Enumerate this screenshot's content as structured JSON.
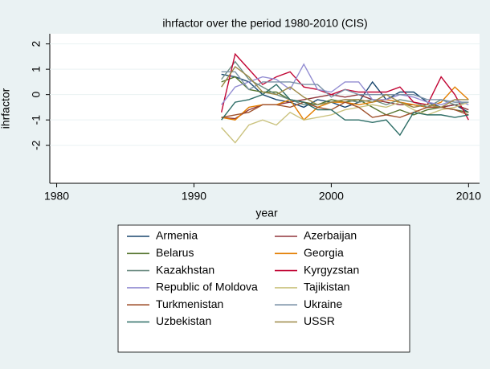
{
  "chart_data": {
    "type": "line",
    "title": "ihrfactor over the period 1980-2010 (CIS)",
    "x_label": "year",
    "y_label": "ihrfactor",
    "x": [
      1992,
      1993,
      1994,
      1995,
      1996,
      1997,
      1998,
      1999,
      2000,
      2001,
      2002,
      2003,
      2004,
      2005,
      2006,
      2007,
      2008,
      2009,
      2010
    ],
    "xlim": [
      1979.5,
      2010.8
    ],
    "xticks": [
      1980,
      1990,
      2000,
      2010
    ],
    "ylim": [
      -3.5,
      2.4
    ],
    "yticks": [
      -2,
      -1,
      0,
      1,
      2
    ],
    "grid": true,
    "series": [
      {
        "name": "Armenia",
        "color": "#1a476f",
        "values": [
          0.8,
          0.7,
          0.5,
          0,
          -0.2,
          -0.3,
          -0.5,
          -0.2,
          -0.3,
          -0.5,
          -0.3,
          0.5,
          -0.2,
          0.1,
          0.1,
          -0.3,
          -0.5,
          -0.4,
          -0.7
        ]
      },
      {
        "name": "Azerbaijan",
        "color": "#90353b",
        "values": [
          -0.9,
          -0.95,
          -0.6,
          -0.4,
          -0.4,
          -0.3,
          -0.2,
          -0.1,
          0,
          -0.1,
          0,
          -0.2,
          -0.3,
          -0.4,
          -0.4,
          -0.5,
          -0.5,
          -0.4,
          -0.6
        ]
      },
      {
        "name": "Belarus",
        "color": "#55752f",
        "values": [
          0.5,
          0.7,
          0.2,
          0.1,
          0.1,
          -0.2,
          -0.3,
          -0.4,
          -0.2,
          -0.3,
          -0.2,
          -0.5,
          -0.8,
          -0.6,
          -0.8,
          -0.6,
          -0.5,
          -0.6,
          -0.7
        ]
      },
      {
        "name": "Georgia",
        "color": "#e37e00",
        "values": [
          -0.9,
          -1.0,
          -0.5,
          -0.4,
          -0.4,
          -0.2,
          -1.0,
          -0.5,
          -0.3,
          -0.3,
          -0.4,
          -0.3,
          -0.2,
          -0.3,
          -0.4,
          -0.5,
          -0.3,
          0.3,
          -0.2
        ]
      },
      {
        "name": "Kazakhstan",
        "color": "#6e8e84",
        "values": [
          0.6,
          1.3,
          0.6,
          0.3,
          0,
          -0.2,
          -0.4,
          -0.4,
          -0.3,
          -0.2,
          -0.3,
          -0.2,
          -0.4,
          -0.2,
          -0.3,
          -0.5,
          -0.2,
          -0.4,
          -0.3
        ]
      },
      {
        "name": "Kyrgyzstan",
        "color": "#c10534",
        "values": [
          -0.7,
          1.6,
          1.0,
          0.4,
          0.7,
          0.9,
          0.3,
          0.2,
          0,
          0.2,
          0.1,
          0.1,
          0.1,
          0.3,
          -0.3,
          -0.4,
          0.7,
          0,
          -1.0
        ]
      },
      {
        "name": "Republic of Moldova",
        "color": "#938dd2",
        "values": [
          -0.4,
          0.3,
          0.5,
          0.7,
          0.6,
          0.2,
          1.2,
          0.2,
          0.1,
          0.5,
          0.5,
          -0.2,
          -0.2,
          0,
          -0.1,
          -0.3,
          -0.4,
          -0.2,
          -0.4
        ]
      },
      {
        "name": "Tajikistan",
        "color": "#cac27e",
        "values": [
          -1.3,
          -1.9,
          -1.2,
          -1.0,
          -1.2,
          -0.7,
          -1.0,
          -0.9,
          -0.8,
          -0.6,
          -0.5,
          -0.4,
          -0.5,
          -0.3,
          -0.6,
          -0.8,
          -0.6,
          -0.5,
          -0.3
        ]
      },
      {
        "name": "Turkmenistan",
        "color": "#a0522d",
        "values": [
          -0.9,
          -0.8,
          -0.7,
          -0.4,
          -0.4,
          -0.5,
          -0.3,
          -0.5,
          -0.6,
          -0.3,
          -0.5,
          -0.9,
          -0.8,
          -0.9,
          -0.7,
          -0.5,
          -0.5,
          -0.6,
          -0.8
        ]
      },
      {
        "name": "Ukraine",
        "color": "#7b92a8",
        "values": [
          0.9,
          0.9,
          0.2,
          0.5,
          0.5,
          0.5,
          0.4,
          0.4,
          -0.1,
          0.2,
          0,
          0,
          0,
          0,
          0,
          -0.2,
          -0.2,
          -0.3,
          -0.3
        ]
      },
      {
        "name": "Uzbekistan",
        "color": "#2d6d66",
        "values": [
          -1.0,
          -0.3,
          -0.2,
          0,
          0.4,
          -0.2,
          -0.3,
          -0.6,
          -0.6,
          -1.0,
          -1.0,
          -1.1,
          -1.0,
          -1.6,
          -0.7,
          -0.8,
          -0.8,
          -0.9,
          -0.8
        ]
      },
      {
        "name": "USSR",
        "color": "#9c8847",
        "values": [
          0.3,
          1.1,
          0.7,
          0.1,
          0,
          0.3,
          -0.1,
          -0.4,
          -0.3,
          -0.2,
          -0.2,
          -0.3,
          0,
          -0.3,
          -0.5,
          -0.4,
          -0.5,
          -0.2,
          -0.2
        ]
      }
    ]
  }
}
